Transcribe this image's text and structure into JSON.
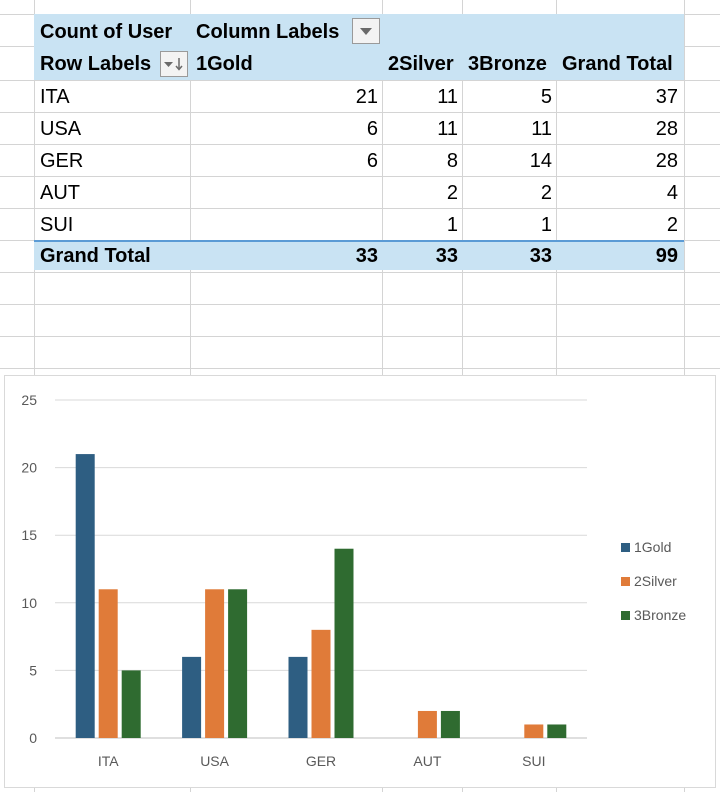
{
  "pivot": {
    "value_field": "Count of User",
    "column_labels": "Column Labels",
    "row_labels": "Row Labels",
    "columns": [
      "1Gold",
      "2Silver",
      "3Bronze",
      "Grand Total"
    ],
    "rows": [
      {
        "label": "ITA",
        "values": [
          "21",
          "11",
          "5",
          "37"
        ]
      },
      {
        "label": "USA",
        "values": [
          "6",
          "11",
          "11",
          "28"
        ]
      },
      {
        "label": "GER",
        "values": [
          "6",
          "8",
          "14",
          "28"
        ]
      },
      {
        "label": "AUT",
        "values": [
          "",
          "2",
          "2",
          "4"
        ]
      },
      {
        "label": "SUI",
        "values": [
          "",
          "1",
          "1",
          "2"
        ]
      }
    ],
    "grand_total": {
      "label": "Grand Total",
      "values": [
        "33",
        "33",
        "33",
        "99"
      ]
    },
    "icons": {
      "column_filter": "dropdown-arrow-icon",
      "row_filter": "filter-sort-icon"
    }
  },
  "chart_data": {
    "type": "bar",
    "categories": [
      "ITA",
      "USA",
      "GER",
      "AUT",
      "SUI"
    ],
    "series": [
      {
        "name": "1Gold",
        "values": [
          21,
          6,
          6,
          null,
          null
        ],
        "color": "#2e5e82"
      },
      {
        "name": "2Silver",
        "values": [
          11,
          11,
          8,
          2,
          1
        ],
        "color": "#e07b39"
      },
      {
        "name": "3Bronze",
        "values": [
          5,
          11,
          14,
          2,
          1
        ],
        "color": "#2f6b30"
      }
    ],
    "yticks": [
      "0",
      "5",
      "10",
      "15",
      "20",
      "25"
    ],
    "ylim": [
      0,
      25
    ],
    "grid": true,
    "legend_position": "right"
  }
}
